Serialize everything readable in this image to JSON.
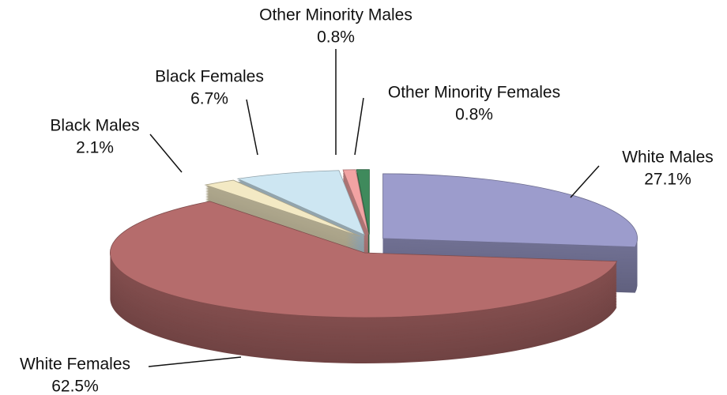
{
  "chart_data": {
    "type": "pie",
    "categories": [
      "White Males",
      "White Females",
      "Black Males",
      "Black Females",
      "Other Minority Males",
      "Other Minority Females"
    ],
    "values": [
      27.1,
      62.5,
      2.1,
      6.7,
      0.8,
      0.8
    ],
    "value_labels": [
      "27.1%",
      "62.5%",
      "2.1%",
      "6.7%",
      "0.8%",
      "0.8%"
    ],
    "colors": [
      "#9c9ccc",
      "#b56c6c",
      "#f3e9c4",
      "#cde6f2",
      "#f2a3a3",
      "#3f8a5c"
    ]
  }
}
